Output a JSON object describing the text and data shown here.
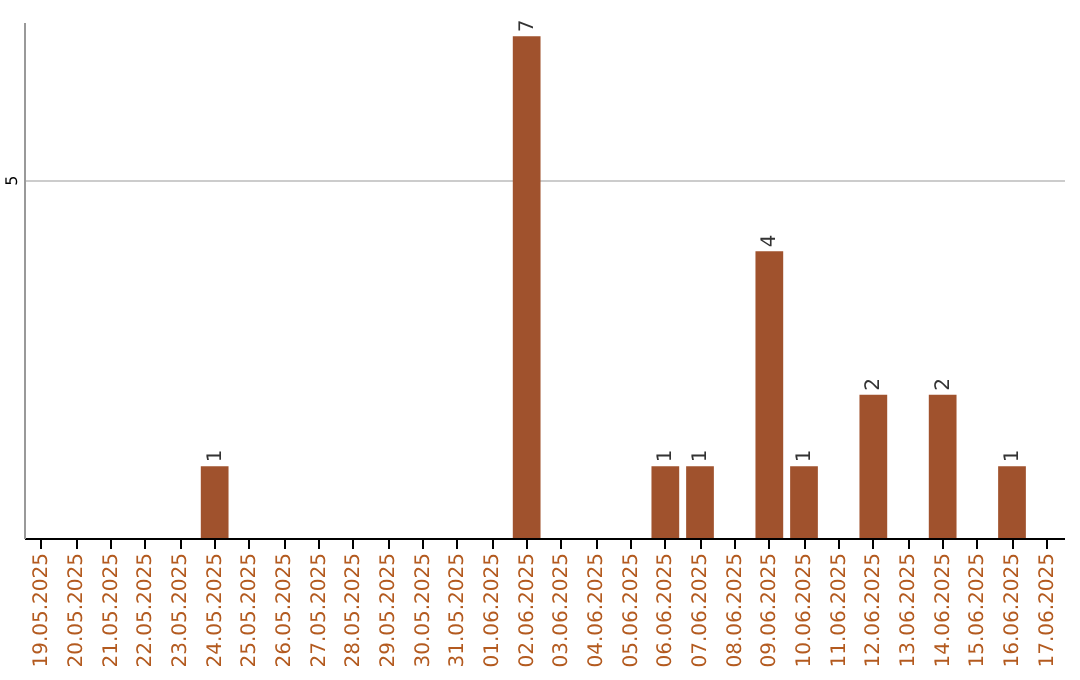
{
  "chart_data": {
    "type": "bar",
    "categories": [
      "19.05.2025",
      "20.05.2025",
      "21.05.2025",
      "22.05.2025",
      "23.05.2025",
      "24.05.2025",
      "25.05.2025",
      "26.05.2025",
      "27.05.2025",
      "28.05.2025",
      "29.05.2025",
      "30.05.2025",
      "31.05.2025",
      "01.06.2025",
      "02.06.2025",
      "03.06.2025",
      "04.06.2025",
      "05.06.2025",
      "06.06.2025",
      "07.06.2025",
      "08.06.2025",
      "09.06.2025",
      "10.06.2025",
      "11.06.2025",
      "12.06.2025",
      "13.06.2025",
      "14.06.2025",
      "15.06.2025",
      "16.06.2025",
      "17.06.2025"
    ],
    "values": [
      null,
      null,
      null,
      null,
      null,
      1,
      null,
      null,
      null,
      null,
      null,
      null,
      null,
      null,
      7,
      null,
      null,
      null,
      1,
      1,
      null,
      4,
      1,
      null,
      2,
      null,
      2,
      null,
      1,
      null
    ],
    "color": "#a0522d",
    "ylim": [
      0,
      7.2
    ],
    "yticks": [
      5
    ],
    "grid": "y",
    "data_labels": true
  }
}
